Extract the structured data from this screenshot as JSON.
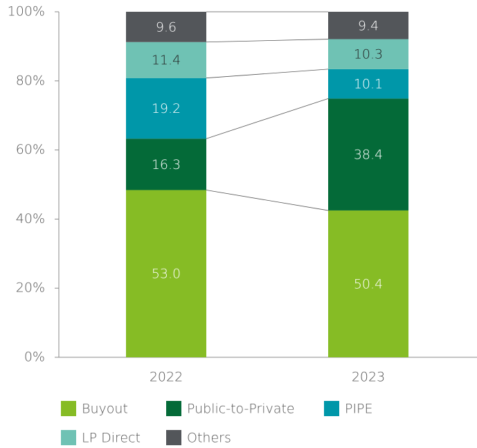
{
  "chart_data": {
    "type": "bar",
    "stacked": "percent",
    "categories": [
      "2022",
      "2023"
    ],
    "series": [
      {
        "name": "Buyout",
        "color": "#86bc25",
        "values": [
          53.0,
          50.4
        ],
        "value_labels": [
          "53.0",
          "50.4"
        ]
      },
      {
        "name": "Public-to-Private",
        "color": "#046a38",
        "values": [
          16.3,
          38.4
        ],
        "value_labels": [
          "16.3",
          "38.4"
        ]
      },
      {
        "name": "PIPE",
        "color": "#0097a9",
        "values": [
          19.2,
          10.1
        ],
        "value_labels": [
          "19.2",
          "10.1"
        ]
      },
      {
        "name": "LP Direct",
        "color": "#6fc2b4",
        "values": [
          11.4,
          10.3
        ],
        "value_labels": [
          "11.4",
          "10.3"
        ]
      },
      {
        "name": "Others",
        "color": "#53565a",
        "values": [
          9.6,
          9.4
        ],
        "value_labels": [
          "9.6",
          "9.4"
        ]
      }
    ],
    "ylim": [
      0,
      100
    ],
    "yticks": [
      {
        "value": 0,
        "label": "0%"
      },
      {
        "value": 20,
        "label": "20%"
      },
      {
        "value": 40,
        "label": "40%"
      },
      {
        "value": 60,
        "label": "60%"
      },
      {
        "value": 80,
        "label": "80%"
      },
      {
        "value": 100,
        "label": "100%"
      }
    ],
    "connectors": true
  }
}
